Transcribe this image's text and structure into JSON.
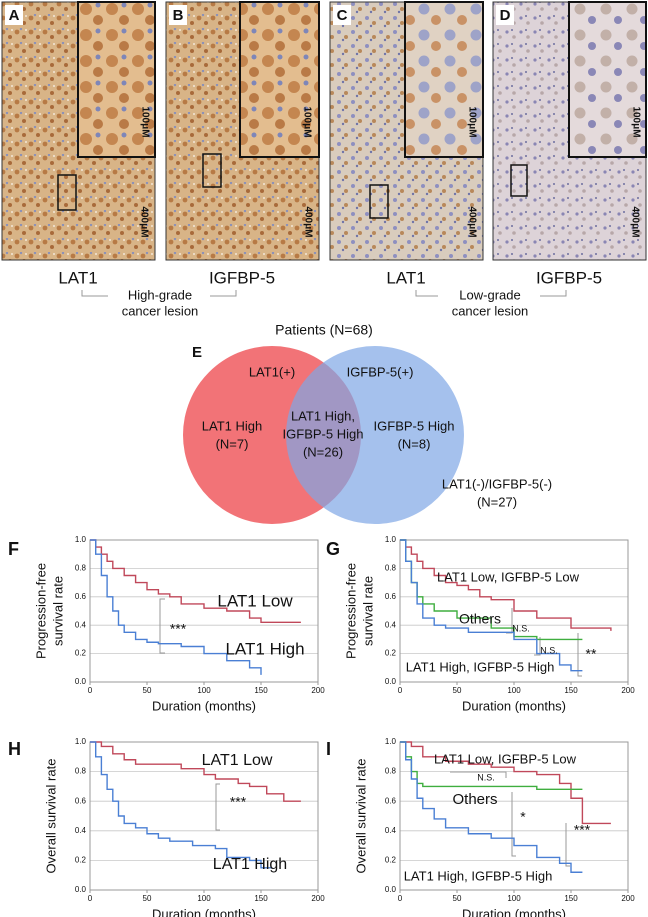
{
  "panels": [
    {
      "letter": "A",
      "scale_inset": "100μM",
      "scale_main": "400μM",
      "marker": "LAT1"
    },
    {
      "letter": "B",
      "scale_inset": "100μM",
      "scale_main": "400μM",
      "marker": "IGFBP-5"
    },
    {
      "letter": "C",
      "scale_inset": "100μM",
      "scale_main": "400μM",
      "marker": "LAT1"
    },
    {
      "letter": "D",
      "scale_inset": "100μM",
      "scale_main": "400μM",
      "marker": "IGFBP-5"
    }
  ],
  "groups": [
    {
      "line1": "High-grade",
      "line2": "cancer lesion"
    },
    {
      "line1": "Low-grade",
      "line2": "cancer lesion"
    }
  ],
  "venn": {
    "letter": "E",
    "title": "Patients (N=68)",
    "left_label": "LAT1(+)",
    "right_label": "IGFBP-5(+)",
    "left_only": [
      "LAT1 High",
      "(N=7)"
    ],
    "overlap": [
      "LAT1 High,",
      "IGFBP-5 High",
      "(N=26)"
    ],
    "right_only": [
      "IGFBP-5 High",
      "(N=8)"
    ],
    "outside": [
      "LAT1(-)/IGFBP-5(-)",
      "(N=27)"
    ]
  },
  "chart_data": [
    {
      "type": "line",
      "panel": "F",
      "step": true,
      "xlabel": "Duration (months)",
      "ylabel": [
        "Progression-free",
        "survival rate"
      ],
      "xlim": [
        0,
        200
      ],
      "ylim": [
        0,
        1
      ],
      "xticks": [
        0,
        50,
        100,
        150,
        200
      ],
      "yticks": [
        {
          "value": 0,
          "label": "0.0"
        },
        0.2,
        0.4,
        0.6,
        0.8,
        {
          "value": 1,
          "label": "1.0"
        }
      ],
      "grid": true,
      "annotations": [
        "***"
      ],
      "series": [
        {
          "name": "LAT1 Low",
          "color": "#c0485a",
          "x": [
            0,
            5,
            10,
            15,
            20,
            30,
            40,
            50,
            60,
            70,
            80,
            100,
            120,
            140,
            150,
            185
          ],
          "values": [
            1,
            0.95,
            0.9,
            0.85,
            0.8,
            0.75,
            0.7,
            0.65,
            0.62,
            0.6,
            0.55,
            0.52,
            0.5,
            0.45,
            0.42,
            0.42
          ]
        },
        {
          "name": "LAT1 High",
          "color": "#4a7fd4",
          "x": [
            0,
            5,
            10,
            15,
            20,
            25,
            30,
            40,
            50,
            60,
            80,
            100,
            120,
            140,
            150
          ],
          "values": [
            1,
            0.9,
            0.75,
            0.6,
            0.5,
            0.4,
            0.35,
            0.3,
            0.28,
            0.27,
            0.25,
            0.2,
            0.15,
            0.1,
            0.05
          ]
        }
      ]
    },
    {
      "type": "line",
      "panel": "G",
      "step": true,
      "xlabel": "Duration (months)",
      "ylabel": [
        "Progression-free",
        "survival rate"
      ],
      "xlim": [
        0,
        200
      ],
      "ylim": [
        0,
        1
      ],
      "xticks": [
        0,
        50,
        100,
        150,
        200
      ],
      "yticks": [
        {
          "value": 0,
          "label": "0.0"
        },
        0.2,
        0.4,
        0.6,
        0.8,
        {
          "value": 1,
          "label": "1.0"
        }
      ],
      "grid": true,
      "annotations": [
        "N.S.",
        "N.S.",
        "**"
      ],
      "series": [
        {
          "name": "LAT1 Low, IGFBP-5 Low",
          "color": "#c0485a",
          "x": [
            0,
            5,
            10,
            15,
            20,
            30,
            40,
            50,
            60,
            70,
            80,
            100,
            120,
            150,
            185
          ],
          "values": [
            1,
            0.95,
            0.9,
            0.85,
            0.8,
            0.75,
            0.7,
            0.68,
            0.65,
            0.6,
            0.58,
            0.5,
            0.45,
            0.38,
            0.36
          ]
        },
        {
          "name": "Others",
          "color": "#3fae3f",
          "x": [
            0,
            5,
            10,
            15,
            20,
            30,
            50,
            80,
            100,
            120,
            160
          ],
          "values": [
            1,
            0.85,
            0.7,
            0.6,
            0.55,
            0.5,
            0.45,
            0.38,
            0.32,
            0.3,
            0.3
          ]
        },
        {
          "name": "LAT1 High, IGFBP-5 High",
          "color": "#4a7fd4",
          "x": [
            0,
            5,
            10,
            15,
            20,
            30,
            40,
            60,
            100,
            120,
            140,
            150,
            160
          ],
          "values": [
            1,
            0.85,
            0.7,
            0.55,
            0.45,
            0.4,
            0.38,
            0.35,
            0.3,
            0.2,
            0.12,
            0.08,
            0.08
          ]
        }
      ]
    },
    {
      "type": "line",
      "panel": "H",
      "step": true,
      "xlabel": "Duration (months)",
      "ylabel": [
        "Overall survival rate"
      ],
      "xlim": [
        0,
        200
      ],
      "ylim": [
        0,
        1
      ],
      "xticks": [
        0,
        50,
        100,
        150,
        200
      ],
      "yticks": [
        {
          "value": 0,
          "label": "0.0"
        },
        0.2,
        0.4,
        0.6,
        0.8,
        {
          "value": 1,
          "label": "1.0"
        }
      ],
      "grid": true,
      "annotations": [
        "***"
      ],
      "series": [
        {
          "name": "LAT1 Low",
          "color": "#c0485a",
          "x": [
            0,
            10,
            20,
            30,
            40,
            60,
            80,
            100,
            110,
            130,
            140,
            155,
            170,
            185
          ],
          "values": [
            1,
            0.97,
            0.92,
            0.88,
            0.85,
            0.85,
            0.82,
            0.78,
            0.75,
            0.72,
            0.7,
            0.65,
            0.6,
            0.6
          ]
        },
        {
          "name": "LAT1 High",
          "color": "#4a7fd4",
          "x": [
            0,
            5,
            10,
            15,
            20,
            25,
            30,
            40,
            50,
            60,
            70,
            90,
            110,
            120,
            140,
            150,
            160
          ],
          "values": [
            1,
            0.9,
            0.78,
            0.68,
            0.6,
            0.5,
            0.45,
            0.42,
            0.38,
            0.35,
            0.33,
            0.3,
            0.28,
            0.22,
            0.2,
            0.15,
            0.15
          ]
        }
      ]
    },
    {
      "type": "line",
      "panel": "I",
      "step": true,
      "xlabel": "Duration (months)",
      "ylabel": [
        "Overall survival rate"
      ],
      "xlim": [
        0,
        200
      ],
      "ylim": [
        0,
        1
      ],
      "xticks": [
        0,
        50,
        100,
        150,
        200
      ],
      "yticks": [
        {
          "value": 0,
          "label": "0.0"
        },
        0.2,
        0.4,
        0.6,
        0.8,
        {
          "value": 1,
          "label": "1.0"
        }
      ],
      "grid": true,
      "annotations": [
        "N.S.",
        "*",
        "***"
      ],
      "series": [
        {
          "name": "LAT1 Low, IGFBP-5 Low",
          "color": "#c0485a",
          "x": [
            0,
            10,
            20,
            40,
            60,
            80,
            100,
            120,
            140,
            150,
            160,
            185
          ],
          "values": [
            1,
            0.97,
            0.9,
            0.87,
            0.85,
            0.83,
            0.8,
            0.78,
            0.72,
            0.62,
            0.45,
            0.45
          ]
        },
        {
          "name": "Others",
          "color": "#3fae3f",
          "x": [
            0,
            5,
            10,
            15,
            20,
            40,
            80,
            120,
            160
          ],
          "values": [
            1,
            0.9,
            0.8,
            0.72,
            0.7,
            0.7,
            0.7,
            0.68,
            0.68
          ]
        },
        {
          "name": "LAT1 High, IGFBP-5 High",
          "color": "#4a7fd4",
          "x": [
            0,
            5,
            10,
            15,
            20,
            30,
            40,
            60,
            80,
            100,
            120,
            140,
            150,
            160
          ],
          "values": [
            1,
            0.88,
            0.75,
            0.62,
            0.55,
            0.48,
            0.42,
            0.38,
            0.35,
            0.3,
            0.22,
            0.18,
            0.12,
            0.12
          ]
        }
      ]
    }
  ]
}
